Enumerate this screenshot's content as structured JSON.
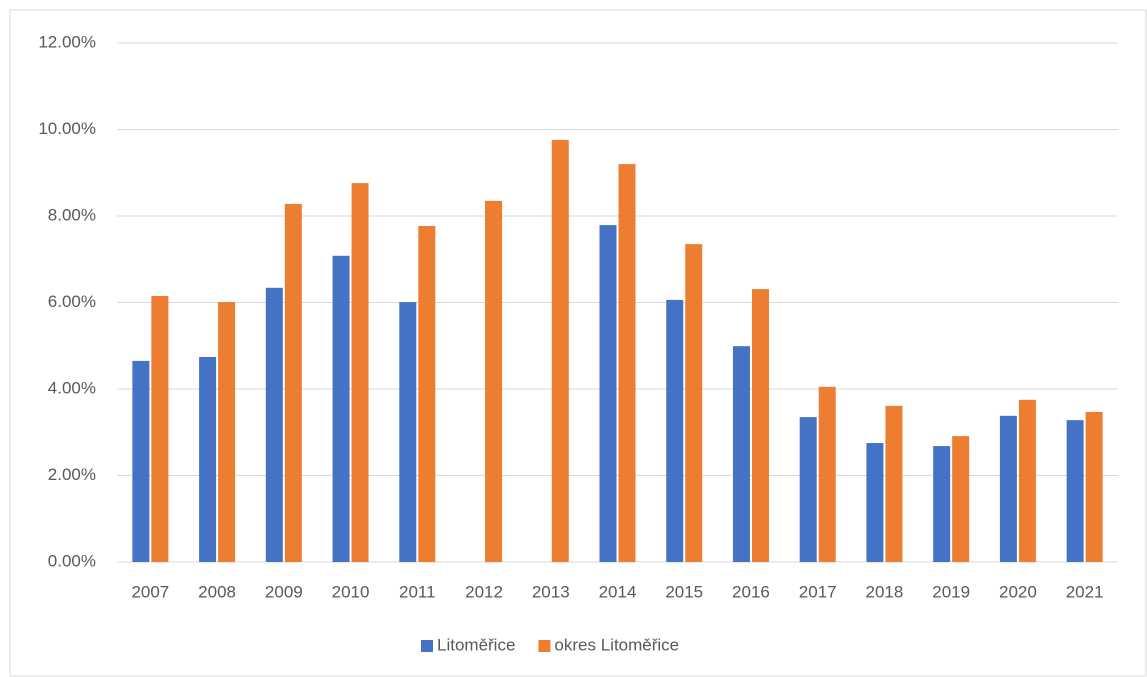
{
  "chart_data": {
    "type": "bar",
    "categories": [
      "2007",
      "2008",
      "2009",
      "2010",
      "2011",
      "2012",
      "2013",
      "2014",
      "2015",
      "2016",
      "2017",
      "2018",
      "2019",
      "2020",
      "2021"
    ],
    "series": [
      {
        "name": "Litoměřice",
        "color": "#4472c4",
        "values": [
          4.65,
          4.74,
          6.34,
          7.08,
          6.01,
          null,
          null,
          7.79,
          6.06,
          4.99,
          3.35,
          2.75,
          2.68,
          3.38,
          3.28
        ]
      },
      {
        "name": "okres Litoměřice",
        "color": "#ed7d31",
        "values": [
          6.15,
          6.01,
          8.28,
          8.76,
          7.77,
          8.35,
          9.76,
          9.2,
          7.35,
          6.31,
          4.05,
          3.61,
          2.91,
          3.75,
          3.47
        ]
      }
    ],
    "ylim": [
      0,
      12
    ],
    "yticks": [
      {
        "value": 0,
        "label": "0.00%"
      },
      {
        "value": 2,
        "label": "2.00%"
      },
      {
        "value": 4,
        "label": "4.00%"
      },
      {
        "value": 6,
        "label": "6.00%"
      },
      {
        "value": 8,
        "label": "8.00%"
      },
      {
        "value": 10,
        "label": "10.00%"
      },
      {
        "value": 12,
        "label": "12.00%"
      }
    ],
    "grid": true,
    "legend": "bottom"
  }
}
